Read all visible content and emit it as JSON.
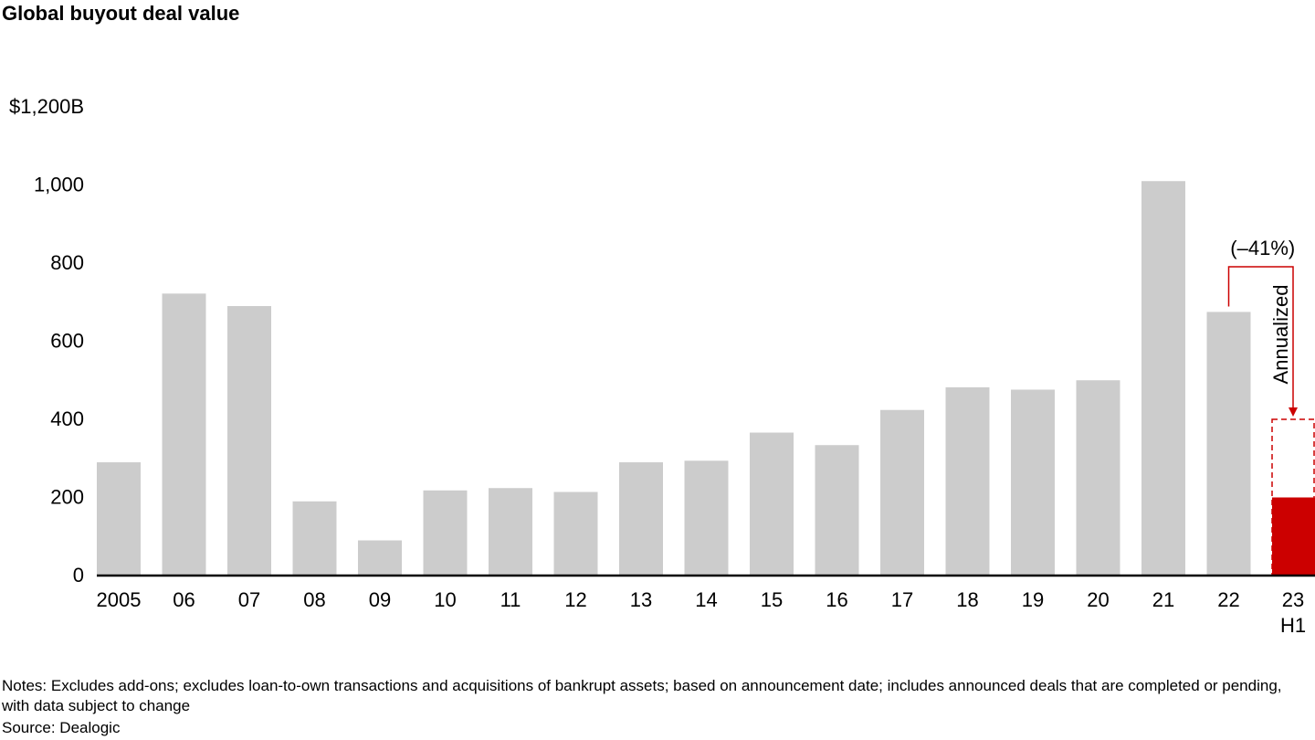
{
  "chart_data": {
    "type": "bar",
    "title": "Global buyout deal value",
    "y_unit_top_label": "$1,200B",
    "y_ticks": [
      {
        "value": 0,
        "label": "0"
      },
      {
        "value": 200,
        "label": "200"
      },
      {
        "value": 400,
        "label": "400"
      },
      {
        "value": 600,
        "label": "600"
      },
      {
        "value": 800,
        "label": "800"
      },
      {
        "value": 1000,
        "label": "1,000"
      },
      {
        "value": 1200,
        "label": "$1,200B"
      }
    ],
    "ylim": [
      0,
      1200
    ],
    "grid": false,
    "categories": [
      "2005",
      "06",
      "07",
      "08",
      "09",
      "10",
      "11",
      "12",
      "13",
      "14",
      "15",
      "16",
      "17",
      "18",
      "19",
      "20",
      "21",
      "22",
      "23"
    ],
    "category_sublabels": {
      "18": "H1"
    },
    "values": [
      290,
      722,
      690,
      190,
      90,
      218,
      224,
      214,
      290,
      294,
      366,
      334,
      424,
      482,
      476,
      500,
      1010,
      675,
      200
    ],
    "annualized": {
      "category": "23",
      "value": 400,
      "label": "Annualized"
    },
    "annotation": {
      "label": "(–41%)",
      "from": "22",
      "to": "23"
    },
    "colors": {
      "bar": "#cccccc",
      "highlight": "#cc0000",
      "axis": "#000000"
    }
  },
  "notes": "Notes: Excludes add-ons; excludes loan-to-own transactions and acquisitions of bankrupt assets; based on announcement date; includes announced deals that are completed or pending, with data subject to change",
  "source": "Source: Dealogic"
}
